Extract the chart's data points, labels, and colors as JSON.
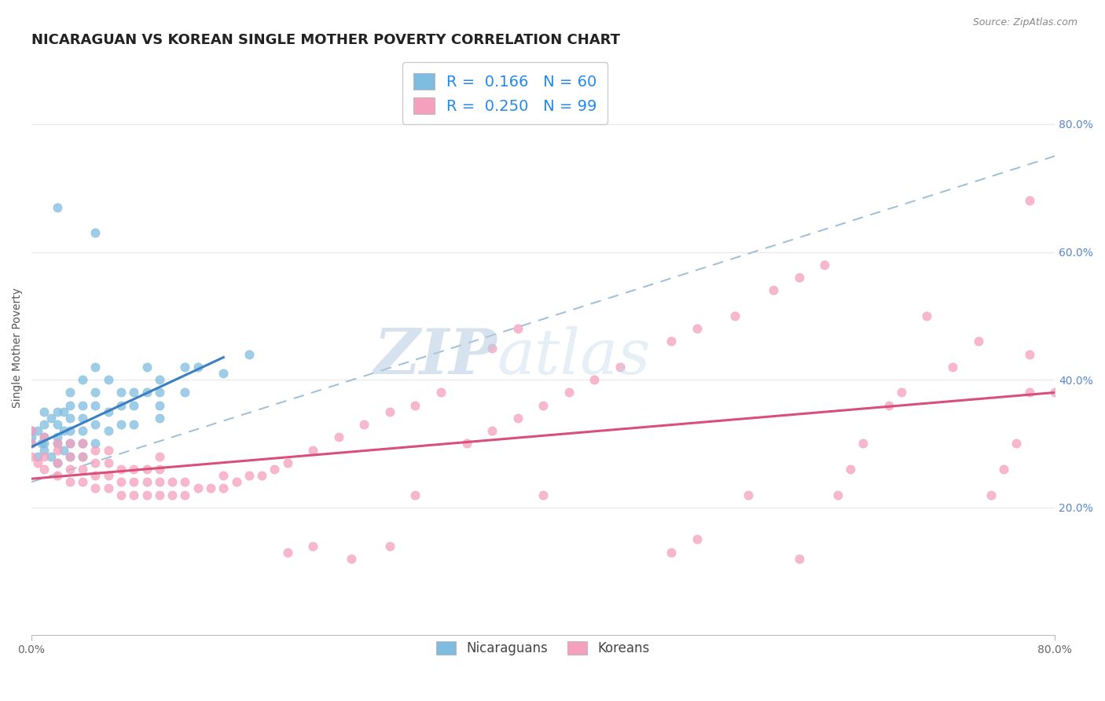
{
  "title": "NICARAGUAN VS KOREAN SINGLE MOTHER POVERTY CORRELATION CHART",
  "source_text": "Source: ZipAtlas.com",
  "ylabel": "Single Mother Poverty",
  "watermark_zip": "ZIP",
  "watermark_atlas": "atlas",
  "xlim": [
    0.0,
    0.8
  ],
  "ylim": [
    0.0,
    0.9
  ],
  "ytick_right": [
    0.2,
    0.4,
    0.6,
    0.8
  ],
  "ytick_right_labels": [
    "20.0%",
    "40.0%",
    "60.0%",
    "80.0%"
  ],
  "xtick_labels": [
    "0.0%",
    "80.0%"
  ],
  "legend_R_blue": "0.166",
  "legend_N_blue": "60",
  "legend_R_pink": "0.250",
  "legend_N_pink": "99",
  "legend_label_blue": "Nicaraguans",
  "legend_label_pink": "Koreans",
  "blue_color": "#7fbde0",
  "pink_color": "#f5a0bc",
  "blue_line_color": "#3a7fc1",
  "pink_line_color": "#d94f7a",
  "dashed_line_color": "#9bbfd8",
  "grid_color": "#e8e8e8",
  "title_fontsize": 13,
  "axis_label_fontsize": 10,
  "tick_fontsize": 10,
  "blue_scatter_x": [
    0.0,
    0.0,
    0.0,
    0.005,
    0.005,
    0.008,
    0.01,
    0.01,
    0.01,
    0.01,
    0.01,
    0.015,
    0.015,
    0.02,
    0.02,
    0.02,
    0.02,
    0.02,
    0.025,
    0.025,
    0.025,
    0.03,
    0.03,
    0.03,
    0.03,
    0.03,
    0.03,
    0.04,
    0.04,
    0.04,
    0.04,
    0.04,
    0.04,
    0.05,
    0.05,
    0.05,
    0.05,
    0.05,
    0.06,
    0.06,
    0.06,
    0.07,
    0.07,
    0.07,
    0.08,
    0.08,
    0.08,
    0.09,
    0.09,
    0.1,
    0.1,
    0.1,
    0.1,
    0.12,
    0.12,
    0.13,
    0.15,
    0.05,
    0.17,
    0.02
  ],
  "blue_scatter_y": [
    0.3,
    0.32,
    0.31,
    0.28,
    0.32,
    0.3,
    0.29,
    0.31,
    0.33,
    0.3,
    0.35,
    0.28,
    0.34,
    0.27,
    0.3,
    0.31,
    0.33,
    0.35,
    0.29,
    0.32,
    0.35,
    0.28,
    0.3,
    0.32,
    0.34,
    0.36,
    0.38,
    0.28,
    0.3,
    0.32,
    0.34,
    0.36,
    0.4,
    0.3,
    0.33,
    0.36,
    0.38,
    0.42,
    0.32,
    0.35,
    0.4,
    0.33,
    0.36,
    0.38,
    0.33,
    0.36,
    0.38,
    0.38,
    0.42,
    0.34,
    0.36,
    0.38,
    0.4,
    0.38,
    0.42,
    0.42,
    0.41,
    0.63,
    0.44,
    0.67
  ],
  "pink_scatter_x": [
    0.0,
    0.0,
    0.0,
    0.005,
    0.01,
    0.01,
    0.01,
    0.02,
    0.02,
    0.02,
    0.02,
    0.03,
    0.03,
    0.03,
    0.03,
    0.04,
    0.04,
    0.04,
    0.04,
    0.05,
    0.05,
    0.05,
    0.05,
    0.06,
    0.06,
    0.06,
    0.06,
    0.07,
    0.07,
    0.07,
    0.08,
    0.08,
    0.08,
    0.09,
    0.09,
    0.09,
    0.1,
    0.1,
    0.1,
    0.1,
    0.11,
    0.11,
    0.12,
    0.12,
    0.13,
    0.14,
    0.15,
    0.15,
    0.16,
    0.17,
    0.18,
    0.19,
    0.2,
    0.22,
    0.24,
    0.26,
    0.28,
    0.3,
    0.3,
    0.32,
    0.34,
    0.36,
    0.38,
    0.4,
    0.4,
    0.42,
    0.44,
    0.46,
    0.5,
    0.52,
    0.55,
    0.56,
    0.58,
    0.6,
    0.62,
    0.63,
    0.64,
    0.65,
    0.67,
    0.68,
    0.7,
    0.72,
    0.74,
    0.75,
    0.76,
    0.77,
    0.78,
    0.78,
    0.78,
    0.8,
    0.36,
    0.38,
    0.2,
    0.22,
    0.25,
    0.28,
    0.5,
    0.52,
    0.6
  ],
  "pink_scatter_y": [
    0.28,
    0.3,
    0.32,
    0.27,
    0.26,
    0.28,
    0.31,
    0.25,
    0.27,
    0.29,
    0.3,
    0.24,
    0.26,
    0.28,
    0.3,
    0.24,
    0.26,
    0.28,
    0.3,
    0.23,
    0.25,
    0.27,
    0.29,
    0.23,
    0.25,
    0.27,
    0.29,
    0.22,
    0.24,
    0.26,
    0.22,
    0.24,
    0.26,
    0.22,
    0.24,
    0.26,
    0.22,
    0.24,
    0.26,
    0.28,
    0.22,
    0.24,
    0.22,
    0.24,
    0.23,
    0.23,
    0.23,
    0.25,
    0.24,
    0.25,
    0.25,
    0.26,
    0.27,
    0.29,
    0.31,
    0.33,
    0.35,
    0.36,
    0.22,
    0.38,
    0.3,
    0.32,
    0.34,
    0.36,
    0.22,
    0.38,
    0.4,
    0.42,
    0.46,
    0.48,
    0.5,
    0.22,
    0.54,
    0.56,
    0.58,
    0.22,
    0.26,
    0.3,
    0.36,
    0.38,
    0.5,
    0.42,
    0.46,
    0.22,
    0.26,
    0.3,
    0.38,
    0.44,
    0.68,
    0.38,
    0.45,
    0.48,
    0.13,
    0.14,
    0.12,
    0.14,
    0.13,
    0.15,
    0.12
  ],
  "blue_regline": [
    0.0,
    0.15,
    0.295,
    0.435
  ],
  "pink_regline_x": [
    0.0,
    0.8
  ],
  "pink_regline_y": [
    0.245,
    0.38
  ],
  "dashed_line_x": [
    0.0,
    0.8
  ],
  "dashed_line_y": [
    0.24,
    0.75
  ]
}
